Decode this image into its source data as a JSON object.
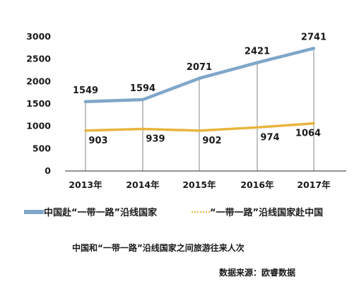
{
  "chart_data": {
    "type": "line",
    "categories": [
      "2013年",
      "2014年",
      "2015年",
      "2016年",
      "2017年"
    ],
    "series": [
      {
        "name": "中国赴“一带一路”沿线国家",
        "values": [
          1549,
          1594,
          2071,
          2421,
          2741
        ],
        "color": "#7fa7c9",
        "style": "solid"
      },
      {
        "name": "“一带一路”沿线国家赴中国",
        "values": [
          903,
          939,
          902,
          974,
          1064
        ],
        "color": "#e8b43c",
        "style": "solid"
      }
    ],
    "ylim": [
      0,
      3000
    ],
    "yticks": [
      0,
      500,
      1000,
      1500,
      2000,
      2500,
      3000
    ],
    "title": "中国和“一带一路”沿线国家之间旅游往来人次",
    "source": "数据来源：欧睿数据",
    "legend_placement": "bottom",
    "grid": "vertical-lines-at-categories"
  }
}
